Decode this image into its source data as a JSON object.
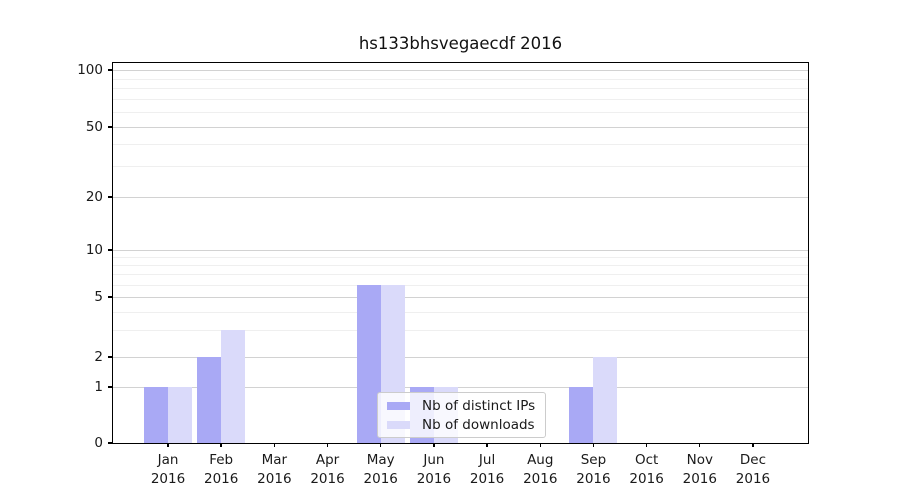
{
  "title": "hs133bhsvegaecdf 2016",
  "chart_data": {
    "type": "bar",
    "title": "hs133bhsvegaecdf 2016",
    "categories": [
      "Jan 2016",
      "Feb 2016",
      "Mar 2016",
      "Apr 2016",
      "May 2016",
      "Jun 2016",
      "Jul 2016",
      "Aug 2016",
      "Sep 2016",
      "Oct 2016",
      "Nov 2016",
      "Dec 2016"
    ],
    "x": {
      "months": [
        "Jan",
        "Feb",
        "Mar",
        "Apr",
        "May",
        "Jun",
        "Jul",
        "Aug",
        "Sep",
        "Oct",
        "Nov",
        "Dec"
      ],
      "year": "2016"
    },
    "series": [
      {
        "name": "Nb of distinct IPs",
        "color": "#a9a9f5",
        "values": [
          1,
          2,
          0,
          0,
          6,
          1,
          0,
          0,
          1,
          0,
          0,
          0
        ]
      },
      {
        "name": "Nb of downloads",
        "color": "#dadafa",
        "values": [
          1,
          3,
          0,
          0,
          6,
          1,
          0,
          0,
          2,
          0,
          0,
          0
        ]
      }
    ],
    "y_axis": {
      "scale": "symlog",
      "tick_values": [
        100,
        50,
        20,
        10,
        5,
        2,
        1,
        0
      ],
      "tick_labels": [
        "100",
        "50",
        "20",
        "10",
        "5",
        "2",
        "1",
        "0"
      ],
      "minor_values": [
        3,
        4,
        6,
        7,
        8,
        9,
        30,
        40,
        60,
        70,
        80,
        90
      ],
      "ylim": [
        0,
        105
      ],
      "grid": "on"
    },
    "legend": {
      "position": "inside-bottom-center",
      "entries": [
        "Nb of distinct IPs",
        "Nb of downloads"
      ]
    }
  }
}
